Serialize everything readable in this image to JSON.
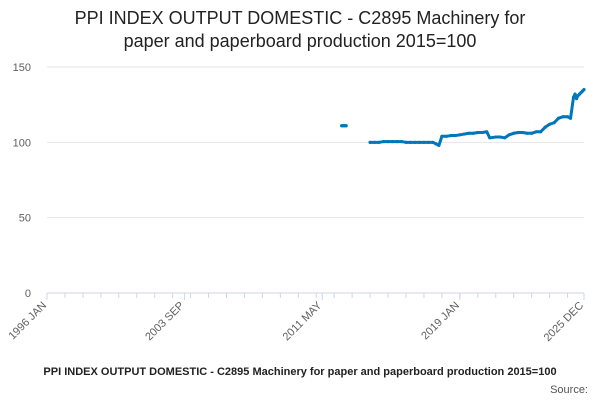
{
  "chart_data": {
    "type": "line",
    "title_lines": [
      "PPI INDEX OUTPUT DOMESTIC - C2895 Machinery for",
      "paper and paperboard production 2015=100"
    ],
    "xlabel": "",
    "ylabel": "",
    "ylim": [
      0,
      150
    ],
    "yticks": [
      0,
      50,
      100,
      150
    ],
    "xlim": [
      "1996-01",
      "2025-12"
    ],
    "xticks": [
      "1996 JAN",
      "2003 SEP",
      "2011 MAY",
      "2019 JAN",
      "2025 DEC"
    ],
    "grid": true,
    "legend_position": "bottom",
    "series": [
      {
        "name": "PPI INDEX OUTPUT DOMESTIC - C2895 Machinery for paper and paperboard production 2015=100",
        "color": "#0077bb",
        "points": [
          [
            "2012-06",
            111
          ],
          [
            "2012-07",
            111
          ],
          [
            "2012-08",
            111
          ],
          [
            "2012-09",
            111
          ],
          [
            "2014-01",
            100
          ],
          [
            "2014-04",
            100
          ],
          [
            "2014-07",
            100
          ],
          [
            "2014-10",
            100.5
          ],
          [
            "2015-01",
            100.5
          ],
          [
            "2015-04",
            100.5
          ],
          [
            "2015-07",
            100.5
          ],
          [
            "2015-10",
            100.5
          ],
          [
            "2016-01",
            100
          ],
          [
            "2016-04",
            100
          ],
          [
            "2016-07",
            100
          ],
          [
            "2016-10",
            100
          ],
          [
            "2017-01",
            100
          ],
          [
            "2017-04",
            100
          ],
          [
            "2017-07",
            100
          ],
          [
            "2017-09",
            99
          ],
          [
            "2017-11",
            98
          ],
          [
            "2018-01",
            104
          ],
          [
            "2018-04",
            104
          ],
          [
            "2018-07",
            104.5
          ],
          [
            "2018-10",
            104.5
          ],
          [
            "2019-01",
            105
          ],
          [
            "2019-04",
            105.5
          ],
          [
            "2019-07",
            106
          ],
          [
            "2019-10",
            106
          ],
          [
            "2020-01",
            106.5
          ],
          [
            "2020-04",
            106.5
          ],
          [
            "2020-07",
            107
          ],
          [
            "2020-09",
            103
          ],
          [
            "2021-01",
            103.5
          ],
          [
            "2021-04",
            103.5
          ],
          [
            "2021-07",
            103
          ],
          [
            "2021-10",
            105
          ],
          [
            "2022-01",
            106
          ],
          [
            "2022-04",
            106.5
          ],
          [
            "2022-07",
            106.5
          ],
          [
            "2022-10",
            106
          ],
          [
            "2023-01",
            106
          ],
          [
            "2023-04",
            107
          ],
          [
            "2023-07",
            107
          ],
          [
            "2023-10",
            110
          ],
          [
            "2024-01",
            112
          ],
          [
            "2024-04",
            113
          ],
          [
            "2024-07",
            116
          ],
          [
            "2024-10",
            117
          ],
          [
            "2025-01",
            117
          ],
          [
            "2025-03",
            116
          ],
          [
            "2025-05",
            130
          ],
          [
            "2025-06",
            132
          ],
          [
            "2025-07",
            129
          ],
          [
            "2025-08",
            131
          ],
          [
            "2025-09",
            132
          ],
          [
            "2025-10",
            133
          ],
          [
            "2025-11",
            134
          ],
          [
            "2025-12",
            135
          ]
        ]
      }
    ],
    "source_label": "Source:"
  }
}
